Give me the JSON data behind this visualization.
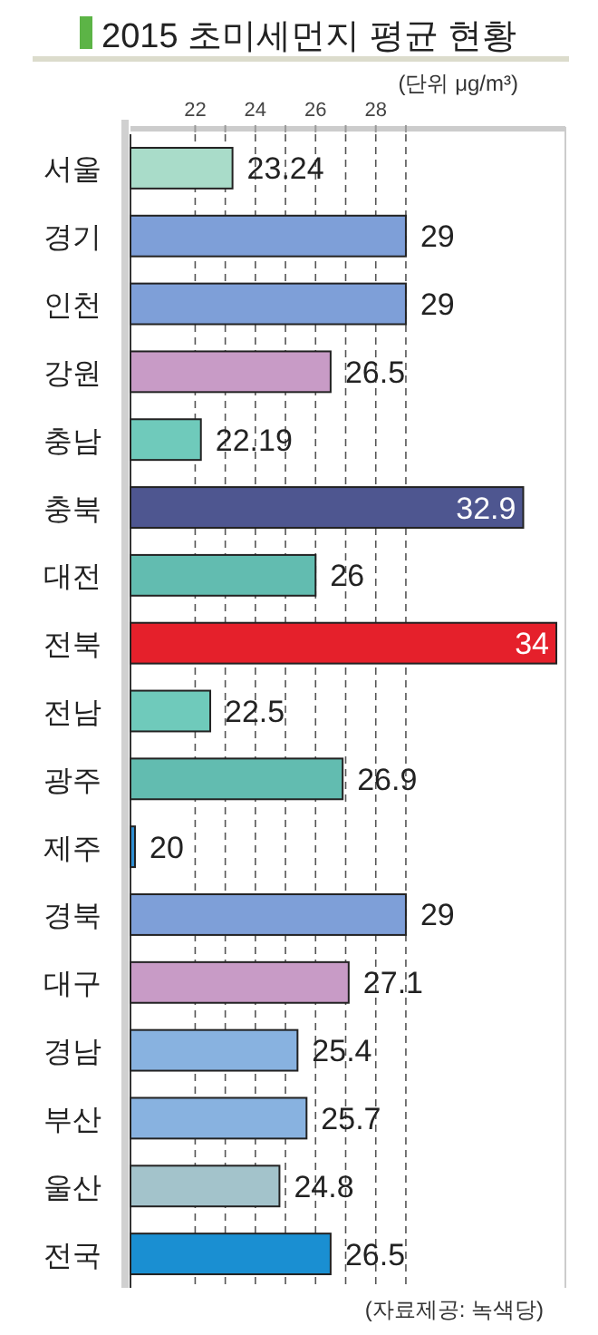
{
  "chart_data": {
    "type": "bar",
    "orientation": "horizontal",
    "title": "2015 초미세먼지 평균 현황",
    "categories": [
      "서울",
      "경기",
      "인천",
      "강원",
      "충남",
      "충북",
      "대전",
      "전북",
      "전남",
      "광주",
      "제주",
      "경북",
      "대구",
      "경남",
      "부산",
      "울산",
      "전국"
    ],
    "values": [
      23.24,
      29,
      29,
      26.5,
      22.19,
      32.9,
      26,
      34,
      22.5,
      26.9,
      20,
      29,
      27.1,
      25.4,
      25.7,
      24.8,
      26.5
    ],
    "colors": [
      "#a9dcc9",
      "#7e9fd8",
      "#7e9fd8",
      "#c89bc6",
      "#6fcabb",
      "#4e5690",
      "#62bcb0",
      "#e5202b",
      "#6fcabb",
      "#62bcb0",
      "#2f8fd2",
      "#7e9fd8",
      "#c89bc6",
      "#88b2e0",
      "#88b2e0",
      "#a3c3cb",
      "#1a8fd2"
    ],
    "xlim": [
      19.85,
      34.3
    ],
    "xticks": [
      22,
      {
        "value": 23,
        "label": null
      },
      24,
      {
        "value": 25,
        "label": null
      },
      26,
      {
        "value": 27,
        "label": null
      },
      28,
      {
        "value": 29,
        "label": null
      }
    ],
    "grid": "x",
    "data_labels": true,
    "annotations": [
      "(단위 μg/m³)",
      "(자료제공: 녹색당)"
    ]
  }
}
